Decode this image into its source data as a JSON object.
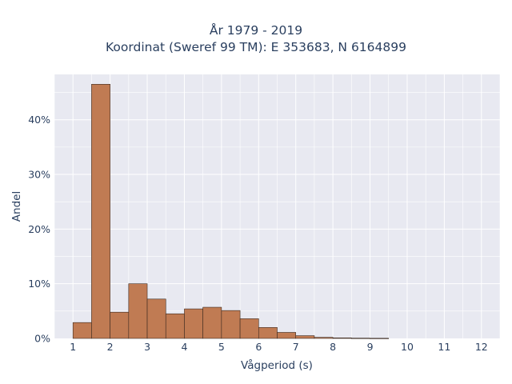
{
  "chart_data": {
    "type": "bar",
    "title_lines": [
      "År 1979 - 2019",
      "Koordinat (Sweref 99 TM): E 353683, N 6164899"
    ],
    "xlabel": "Vågperiod (s)",
    "ylabel": "Andel",
    "x_ticks": [
      "1",
      "2",
      "3",
      "4",
      "5",
      "6",
      "7",
      "8",
      "9",
      "10",
      "11",
      "12"
    ],
    "y_ticks": [
      "0%",
      "10%",
      "20%",
      "30%",
      "40%"
    ],
    "xlim": [
      0.5,
      12.5
    ],
    "ylim": [
      0,
      48.3
    ],
    "bin_width": 0.5,
    "bins_start": [
      1.0,
      1.5,
      2.0,
      2.5,
      3.0,
      3.5,
      4.0,
      4.5,
      5.0,
      5.5,
      6.0,
      6.5,
      7.0,
      7.5,
      8.0,
      8.5,
      9.0
    ],
    "values": [
      2.9,
      46.5,
      4.8,
      10.0,
      7.2,
      4.5,
      5.4,
      5.7,
      5.1,
      3.6,
      2.0,
      1.1,
      0.5,
      0.2,
      0.1,
      0.05,
      0.03
    ],
    "value_unit": "%",
    "grid": true,
    "colors": {
      "bar_fill": "#c07b53",
      "bar_edge": "#3b2a20",
      "plot_bg": "#e8e9f1",
      "grid": "#ffffff"
    }
  }
}
